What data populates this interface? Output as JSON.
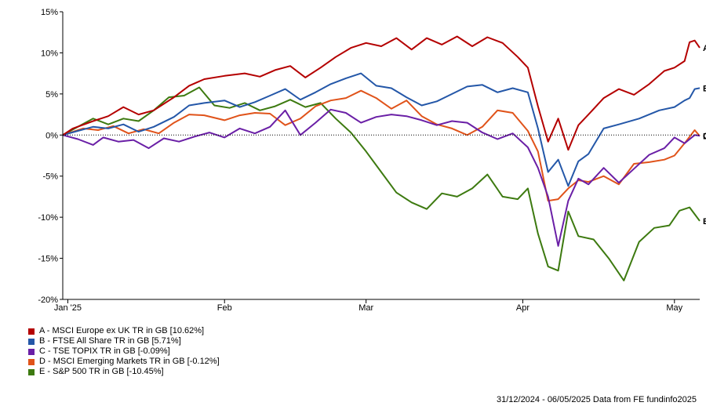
{
  "chart_data": {
    "type": "line",
    "title": "",
    "xlabel": "",
    "ylabel": "",
    "ylim": [
      -20,
      15
    ],
    "yticks": [
      15,
      10,
      5,
      0,
      -5,
      -10,
      -15,
      -20
    ],
    "ytick_labels": [
      "15%",
      "10%",
      "5%",
      "0%",
      "-5%",
      "-10%",
      "-15%",
      "-20%"
    ],
    "xlim": [
      "2024-12-31",
      "2025-05-06"
    ],
    "xticks": [
      {
        "date": "2025-01-01",
        "label": "Jan '25"
      },
      {
        "date": "2025-02-01",
        "label": "Feb"
      },
      {
        "date": "2025-03-01",
        "label": "Mar"
      },
      {
        "date": "2025-04-01",
        "label": "Apr"
      },
      {
        "date": "2025-05-01",
        "label": "May"
      }
    ],
    "zero_line": true,
    "grid": false,
    "legend_position": "bottom-left",
    "series": [
      {
        "letter": "A",
        "name": "A - MSCI Europe ex UK TR in GB [10.62%]",
        "color": "#b40000",
        "points": [
          [
            "2024-12-31",
            0
          ],
          [
            "2025-01-02",
            0.8
          ],
          [
            "2025-01-06",
            1.7
          ],
          [
            "2025-01-09",
            2.3
          ],
          [
            "2025-01-12",
            3.4
          ],
          [
            "2025-01-15",
            2.5
          ],
          [
            "2025-01-18",
            3.0
          ],
          [
            "2025-01-22",
            4.6
          ],
          [
            "2025-01-25",
            6.0
          ],
          [
            "2025-01-28",
            6.8
          ],
          [
            "2025-02-01",
            7.2
          ],
          [
            "2025-02-05",
            7.5
          ],
          [
            "2025-02-08",
            7.1
          ],
          [
            "2025-02-11",
            7.9
          ],
          [
            "2025-02-14",
            8.4
          ],
          [
            "2025-02-17",
            7.0
          ],
          [
            "2025-02-20",
            8.2
          ],
          [
            "2025-02-23",
            9.5
          ],
          [
            "2025-02-26",
            10.6
          ],
          [
            "2025-03-01",
            11.2
          ],
          [
            "2025-03-04",
            10.8
          ],
          [
            "2025-03-07",
            11.8
          ],
          [
            "2025-03-10",
            10.4
          ],
          [
            "2025-03-13",
            11.8
          ],
          [
            "2025-03-16",
            11.0
          ],
          [
            "2025-03-19",
            12.0
          ],
          [
            "2025-03-22",
            10.8
          ],
          [
            "2025-03-25",
            11.9
          ],
          [
            "2025-03-28",
            11.2
          ],
          [
            "2025-03-31",
            9.5
          ],
          [
            "2025-04-02",
            8.2
          ],
          [
            "2025-04-04",
            3.5
          ],
          [
            "2025-04-06",
            -0.8
          ],
          [
            "2025-04-08",
            2.0
          ],
          [
            "2025-04-10",
            -1.8
          ],
          [
            "2025-04-12",
            1.2
          ],
          [
            "2025-04-14",
            2.5
          ],
          [
            "2025-04-17",
            4.5
          ],
          [
            "2025-04-20",
            5.6
          ],
          [
            "2025-04-23",
            4.9
          ],
          [
            "2025-04-26",
            6.2
          ],
          [
            "2025-04-29",
            7.8
          ],
          [
            "2025-05-01",
            8.2
          ],
          [
            "2025-05-03",
            9.0
          ],
          [
            "2025-05-04",
            11.3
          ],
          [
            "2025-05-05",
            11.5
          ],
          [
            "2025-05-06",
            10.62
          ]
        ]
      },
      {
        "letter": "B",
        "name": "B - FTSE All Share TR in GB [5.71%]",
        "color": "#2457a8",
        "points": [
          [
            "2024-12-31",
            0
          ],
          [
            "2025-01-03",
            0.5
          ],
          [
            "2025-01-06",
            1.0
          ],
          [
            "2025-01-09",
            0.8
          ],
          [
            "2025-01-12",
            1.3
          ],
          [
            "2025-01-15",
            0.4
          ],
          [
            "2025-01-18",
            1.0
          ],
          [
            "2025-01-22",
            2.2
          ],
          [
            "2025-01-25",
            3.6
          ],
          [
            "2025-01-28",
            3.9
          ],
          [
            "2025-02-01",
            4.2
          ],
          [
            "2025-02-04",
            3.4
          ],
          [
            "2025-02-07",
            4.0
          ],
          [
            "2025-02-10",
            4.8
          ],
          [
            "2025-02-13",
            5.6
          ],
          [
            "2025-02-16",
            4.3
          ],
          [
            "2025-02-19",
            5.2
          ],
          [
            "2025-02-22",
            6.2
          ],
          [
            "2025-02-25",
            6.9
          ],
          [
            "2025-02-28",
            7.5
          ],
          [
            "2025-03-03",
            6.0
          ],
          [
            "2025-03-06",
            5.7
          ],
          [
            "2025-03-09",
            4.6
          ],
          [
            "2025-03-12",
            3.6
          ],
          [
            "2025-03-15",
            4.1
          ],
          [
            "2025-03-18",
            5.0
          ],
          [
            "2025-03-21",
            5.9
          ],
          [
            "2025-03-24",
            6.1
          ],
          [
            "2025-03-27",
            5.2
          ],
          [
            "2025-03-30",
            5.7
          ],
          [
            "2025-04-02",
            5.2
          ],
          [
            "2025-04-04",
            0.8
          ],
          [
            "2025-04-06",
            -4.5
          ],
          [
            "2025-04-08",
            -3.0
          ],
          [
            "2025-04-10",
            -6.2
          ],
          [
            "2025-04-12",
            -3.2
          ],
          [
            "2025-04-14",
            -2.3
          ],
          [
            "2025-04-17",
            0.8
          ],
          [
            "2025-04-20",
            1.3
          ],
          [
            "2025-04-24",
            2.0
          ],
          [
            "2025-04-28",
            3.0
          ],
          [
            "2025-05-01",
            3.4
          ],
          [
            "2025-05-03",
            4.2
          ],
          [
            "2025-05-04",
            4.5
          ],
          [
            "2025-05-05",
            5.6
          ],
          [
            "2025-05-06",
            5.71
          ]
        ]
      },
      {
        "letter": "C",
        "name": "C - TSE TOPIX TR in GB [-0.09%]",
        "color": "#6a1fa6",
        "points": [
          [
            "2024-12-31",
            0
          ],
          [
            "2025-01-03",
            -0.5
          ],
          [
            "2025-01-06",
            -1.2
          ],
          [
            "2025-01-08",
            -0.3
          ],
          [
            "2025-01-11",
            -0.8
          ],
          [
            "2025-01-14",
            -0.6
          ],
          [
            "2025-01-17",
            -1.6
          ],
          [
            "2025-01-20",
            -0.4
          ],
          [
            "2025-01-23",
            -0.8
          ],
          [
            "2025-01-26",
            -0.2
          ],
          [
            "2025-01-29",
            0.3
          ],
          [
            "2025-02-01",
            -0.3
          ],
          [
            "2025-02-04",
            0.8
          ],
          [
            "2025-02-07",
            0.2
          ],
          [
            "2025-02-10",
            1.0
          ],
          [
            "2025-02-13",
            3.0
          ],
          [
            "2025-02-16",
            0.0
          ],
          [
            "2025-02-19",
            1.5
          ],
          [
            "2025-02-22",
            3.1
          ],
          [
            "2025-02-25",
            2.7
          ],
          [
            "2025-02-28",
            1.5
          ],
          [
            "2025-03-03",
            2.2
          ],
          [
            "2025-03-06",
            2.5
          ],
          [
            "2025-03-09",
            2.3
          ],
          [
            "2025-03-12",
            1.8
          ],
          [
            "2025-03-15",
            1.2
          ],
          [
            "2025-03-18",
            1.7
          ],
          [
            "2025-03-21",
            1.5
          ],
          [
            "2025-03-24",
            0.3
          ],
          [
            "2025-03-27",
            -0.5
          ],
          [
            "2025-03-30",
            0.2
          ],
          [
            "2025-04-02",
            -1.5
          ],
          [
            "2025-04-04",
            -4.0
          ],
          [
            "2025-04-06",
            -7.5
          ],
          [
            "2025-04-08",
            -13.5
          ],
          [
            "2025-04-10",
            -8.0
          ],
          [
            "2025-04-12",
            -5.3
          ],
          [
            "2025-04-14",
            -6.0
          ],
          [
            "2025-04-17",
            -4.0
          ],
          [
            "2025-04-20",
            -5.8
          ],
          [
            "2025-04-23",
            -4.1
          ],
          [
            "2025-04-26",
            -2.4
          ],
          [
            "2025-04-29",
            -1.6
          ],
          [
            "2025-05-01",
            -0.3
          ],
          [
            "2025-05-03",
            -1.0
          ],
          [
            "2025-05-05",
            0.0
          ],
          [
            "2025-05-06",
            -0.09
          ]
        ]
      },
      {
        "letter": "D",
        "name": "D - MSCI Emerging Markets TR in GB [-0.12%]",
        "color": "#e0531a",
        "points": [
          [
            "2024-12-31",
            0
          ],
          [
            "2025-01-04",
            0.8
          ],
          [
            "2025-01-07",
            0.6
          ],
          [
            "2025-01-10",
            1.1
          ],
          [
            "2025-01-13",
            0.2
          ],
          [
            "2025-01-16",
            0.7
          ],
          [
            "2025-01-19",
            0.2
          ],
          [
            "2025-01-22",
            1.5
          ],
          [
            "2025-01-25",
            2.5
          ],
          [
            "2025-01-28",
            2.4
          ],
          [
            "2025-02-01",
            1.8
          ],
          [
            "2025-02-04",
            2.4
          ],
          [
            "2025-02-07",
            2.7
          ],
          [
            "2025-02-10",
            2.6
          ],
          [
            "2025-02-13",
            1.2
          ],
          [
            "2025-02-16",
            2.0
          ],
          [
            "2025-02-19",
            3.5
          ],
          [
            "2025-02-22",
            4.2
          ],
          [
            "2025-02-25",
            4.5
          ],
          [
            "2025-02-28",
            5.4
          ],
          [
            "2025-03-03",
            4.5
          ],
          [
            "2025-03-06",
            3.2
          ],
          [
            "2025-03-09",
            4.2
          ],
          [
            "2025-03-12",
            2.3
          ],
          [
            "2025-03-15",
            1.3
          ],
          [
            "2025-03-18",
            0.8
          ],
          [
            "2025-03-21",
            0.0
          ],
          [
            "2025-03-24",
            1.0
          ],
          [
            "2025-03-27",
            3.0
          ],
          [
            "2025-03-30",
            2.7
          ],
          [
            "2025-04-02",
            0.5
          ],
          [
            "2025-04-04",
            -2.0
          ],
          [
            "2025-04-06",
            -8.0
          ],
          [
            "2025-04-08",
            -7.8
          ],
          [
            "2025-04-10",
            -6.5
          ],
          [
            "2025-04-12",
            -5.5
          ],
          [
            "2025-04-14",
            -5.7
          ],
          [
            "2025-04-17",
            -5.0
          ],
          [
            "2025-04-20",
            -6.0
          ],
          [
            "2025-04-23",
            -3.5
          ],
          [
            "2025-04-26",
            -3.3
          ],
          [
            "2025-04-29",
            -3.0
          ],
          [
            "2025-05-01",
            -2.5
          ],
          [
            "2025-05-03",
            -1.0
          ],
          [
            "2025-05-05",
            0.6
          ],
          [
            "2025-05-06",
            -0.12
          ]
        ]
      },
      {
        "letter": "E",
        "name": "E - S&P 500 TR in GB [-10.45%]",
        "color": "#3d7a10",
        "points": [
          [
            "2024-12-31",
            0
          ],
          [
            "2025-01-03",
            1.0
          ],
          [
            "2025-01-06",
            2.0
          ],
          [
            "2025-01-09",
            1.3
          ],
          [
            "2025-01-12",
            2.0
          ],
          [
            "2025-01-15",
            1.7
          ],
          [
            "2025-01-18",
            3.0
          ],
          [
            "2025-01-21",
            4.6
          ],
          [
            "2025-01-24",
            4.8
          ],
          [
            "2025-01-27",
            5.8
          ],
          [
            "2025-01-30",
            3.6
          ],
          [
            "2025-02-02",
            3.3
          ],
          [
            "2025-02-05",
            3.9
          ],
          [
            "2025-02-08",
            3.0
          ],
          [
            "2025-02-11",
            3.5
          ],
          [
            "2025-02-14",
            4.3
          ],
          [
            "2025-02-17",
            3.4
          ],
          [
            "2025-02-20",
            3.9
          ],
          [
            "2025-02-23",
            2.0
          ],
          [
            "2025-02-26",
            0.3
          ],
          [
            "2025-03-01",
            -2.0
          ],
          [
            "2025-03-04",
            -4.5
          ],
          [
            "2025-03-07",
            -7.0
          ],
          [
            "2025-03-10",
            -8.2
          ],
          [
            "2025-03-13",
            -9.0
          ],
          [
            "2025-03-16",
            -7.1
          ],
          [
            "2025-03-19",
            -7.5
          ],
          [
            "2025-03-22",
            -6.5
          ],
          [
            "2025-03-25",
            -4.8
          ],
          [
            "2025-03-28",
            -7.5
          ],
          [
            "2025-03-31",
            -7.8
          ],
          [
            "2025-04-02",
            -6.5
          ],
          [
            "2025-04-04",
            -12.0
          ],
          [
            "2025-04-06",
            -16.0
          ],
          [
            "2025-04-08",
            -16.5
          ],
          [
            "2025-04-10",
            -9.3
          ],
          [
            "2025-04-12",
            -12.3
          ],
          [
            "2025-04-15",
            -12.7
          ],
          [
            "2025-04-18",
            -15.0
          ],
          [
            "2025-04-21",
            -17.7
          ],
          [
            "2025-04-24",
            -13.0
          ],
          [
            "2025-04-27",
            -11.3
          ],
          [
            "2025-04-30",
            -11.0
          ],
          [
            "2025-05-02",
            -9.2
          ],
          [
            "2025-05-04",
            -8.8
          ],
          [
            "2025-05-06",
            -10.45
          ]
        ]
      }
    ]
  },
  "footer": {
    "text": "31/12/2024 - 06/05/2025 Data from FE fundinfo2025"
  }
}
